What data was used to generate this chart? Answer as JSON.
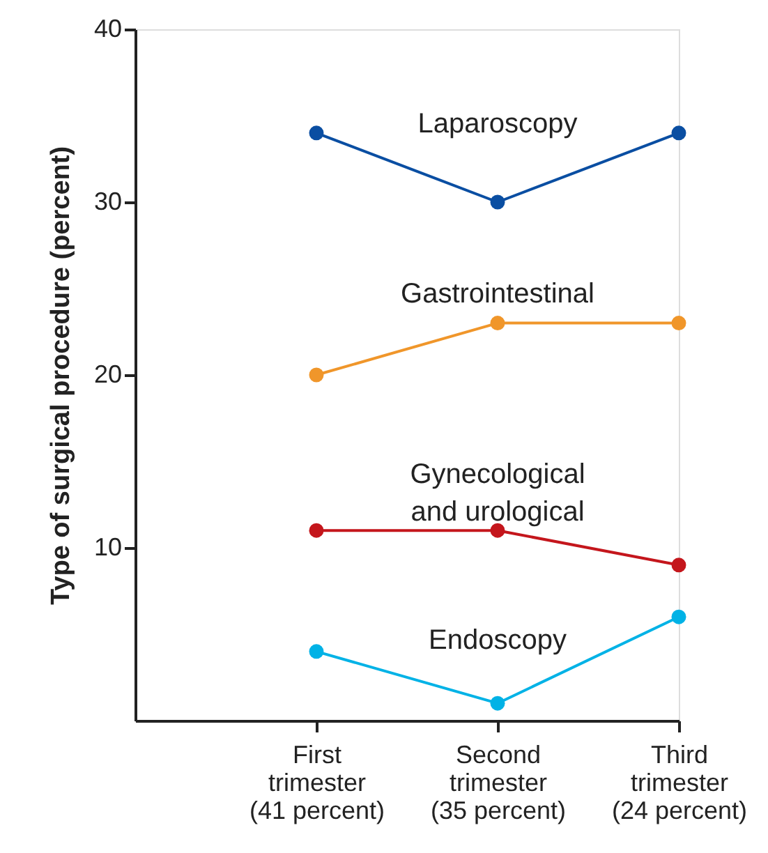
{
  "chart_data": {
    "type": "line",
    "ylabel": "Type of surgical procedure (percent)",
    "categories": [
      "First\ntrimester\n(41 percent)",
      "Second\ntrimester\n(35 percent)",
      "Third\ntrimester\n(24 percent)"
    ],
    "series": [
      {
        "name": "Laparoscopy",
        "color": "#0a4ea2",
        "values": [
          34,
          30,
          34
        ]
      },
      {
        "name": "Gastrointestinal",
        "color": "#f0962a",
        "values": [
          20,
          23,
          23
        ]
      },
      {
        "name": "Gynecological\nand urological",
        "color": "#c4161c",
        "values": [
          11,
          11,
          9
        ]
      },
      {
        "name": "Endoscopy",
        "color": "#00b2e6",
        "values": [
          4,
          1,
          6
        ]
      }
    ],
    "ylim": [
      0,
      40
    ],
    "yticks": [
      10,
      20,
      30,
      40
    ],
    "grid": false,
    "legend": false,
    "marker": "circle",
    "line_style": "solid"
  }
}
